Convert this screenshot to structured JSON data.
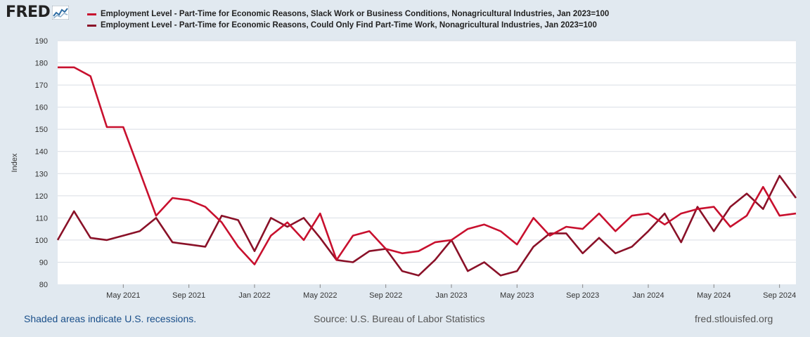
{
  "logo": {
    "text": "FRED",
    "mark": "chart-logo-icon"
  },
  "colors": {
    "series1": "#c8102e",
    "series2": "#8a1128",
    "background": "#e1e9f0",
    "plot": "#ffffff",
    "grid": "#d9dee4"
  },
  "chart_data": {
    "type": "line",
    "title": "",
    "ylabel": "Index",
    "xlabel": "",
    "ylim": [
      80,
      190
    ],
    "yticks": [
      "80",
      "90",
      "100",
      "110",
      "120",
      "130",
      "140",
      "150",
      "160",
      "170",
      "180",
      "190"
    ],
    "xtick_labels": [
      "May 2021",
      "Sep 2021",
      "Jan 2022",
      "May 2022",
      "Sep 2022",
      "Jan 2023",
      "May 2023",
      "Sep 2023",
      "Jan 2024",
      "May 2024",
      "Sep 2024"
    ],
    "xtick_index": [
      4,
      8,
      12,
      16,
      20,
      24,
      28,
      32,
      36,
      40,
      44
    ],
    "x_start": "Jan 2021",
    "x_end": "Oct 2024",
    "grid": true,
    "legend_position": "top",
    "series": [
      {
        "name": "Employment Level - Part-Time for Economic Reasons, Slack Work or Business Conditions, Nonagricultural Industries, Jan 2023=100",
        "values": [
          178,
          178,
          174,
          151,
          151,
          131,
          111,
          119,
          118,
          115,
          108,
          97,
          89,
          102,
          108,
          100,
          112,
          91,
          102,
          104,
          96,
          94,
          95,
          99,
          100,
          105,
          107,
          104,
          98,
          110,
          102,
          106,
          105,
          112,
          104,
          111,
          112,
          107,
          112,
          114,
          115,
          106,
          111,
          124,
          111,
          112
        ]
      },
      {
        "name": "Employment Level - Part-Time for Economic Reasons, Could Only Find Part-Time Work, Nonagricultural Industries, Jan 2023=100",
        "values": [
          100,
          113,
          101,
          100,
          102,
          104,
          110,
          99,
          98,
          97,
          111,
          109,
          95,
          110,
          106,
          110,
          101,
          91,
          90,
          95,
          96,
          86,
          84,
          91,
          100,
          86,
          90,
          84,
          86,
          97,
          103,
          103,
          94,
          101,
          94,
          97,
          104,
          112,
          99,
          115,
          104,
          115,
          121,
          114,
          129,
          119
        ]
      }
    ]
  },
  "footer": {
    "recessions": "Shaded areas indicate U.S. recessions.",
    "source": "Source: U.S. Bureau of Labor Statistics",
    "site": "fred.stlouisfed.org"
  }
}
